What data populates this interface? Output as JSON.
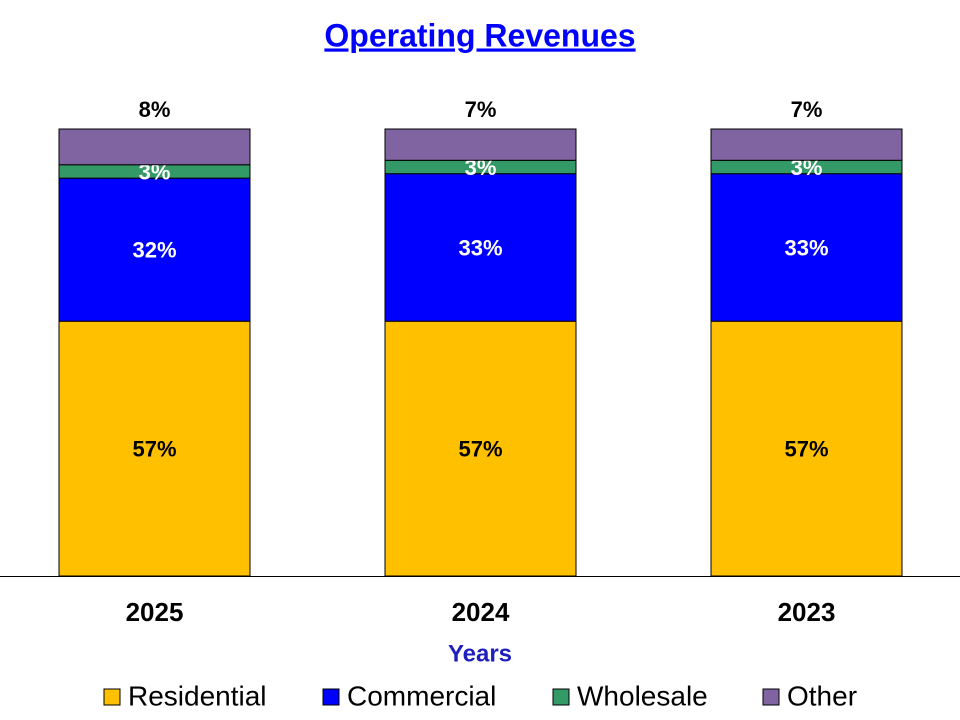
{
  "chart_data": {
    "type": "stacked-bar",
    "title": "Operating Revenues",
    "x_label": "Years",
    "categories": [
      "2025",
      "2024",
      "2023"
    ],
    "series": [
      {
        "name": "Residential",
        "color": "#ffc000",
        "values": [
          57,
          57,
          57
        ],
        "value_labels": [
          "57%",
          "57%",
          "57%"
        ]
      },
      {
        "name": "Commercial",
        "color": "#0000ff",
        "values": [
          32,
          33,
          33
        ],
        "value_labels": [
          "32%",
          "33%",
          "33%"
        ]
      },
      {
        "name": "Wholesale",
        "color": "#339966",
        "values": [
          3,
          3,
          3
        ],
        "value_labels": [
          "3%",
          "3%",
          "3%"
        ]
      },
      {
        "name": "Other",
        "color": "#8064a2",
        "values": [
          8,
          7,
          7
        ],
        "value_labels": [
          "8%",
          "7%",
          "7%"
        ]
      }
    ],
    "legend": "bottom"
  }
}
